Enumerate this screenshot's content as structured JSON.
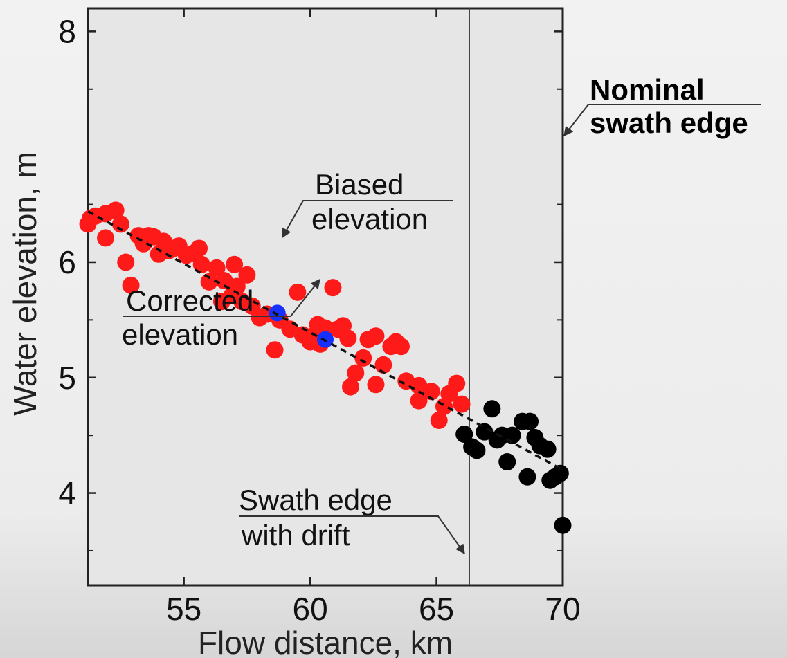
{
  "chart_data": {
    "type": "scatter",
    "title": "",
    "xlabel": "Flow distance, km",
    "ylabel": "Water elevation, m",
    "xlim": [
      51.2,
      70
    ],
    "ylim": [
      3.2,
      8.2
    ],
    "xticks": [
      55,
      60,
      65,
      70
    ],
    "xtick_labels": [
      "55",
      "60",
      "65",
      "70"
    ],
    "yticks": [
      4,
      5,
      6,
      8
    ],
    "ytick_labels": [
      "4",
      "5",
      "6",
      "8"
    ],
    "y_minor_ticks": [
      3.5,
      4.5,
      5.5,
      6.5,
      7.5
    ],
    "grid": false,
    "series": [
      {
        "color": "#ff1a1a",
        "points": [
          [
            51.2,
            6.33
          ],
          [
            51.3,
            6.38
          ],
          [
            51.5,
            6.4
          ],
          [
            51.9,
            6.42
          ],
          [
            52.3,
            6.45
          ],
          [
            52.5,
            6.33
          ],
          [
            51.9,
            6.21
          ],
          [
            52.7,
            6.0
          ],
          [
            52.9,
            5.8
          ],
          [
            53.2,
            6.23
          ],
          [
            53.4,
            6.16
          ],
          [
            53.6,
            6.23
          ],
          [
            53.8,
            6.22
          ],
          [
            54.0,
            6.07
          ],
          [
            54.2,
            6.18
          ],
          [
            54.4,
            6.1
          ],
          [
            54.6,
            6.12
          ],
          [
            54.8,
            6.14
          ],
          [
            55.1,
            6.06
          ],
          [
            55.4,
            6.08
          ],
          [
            55.6,
            6.12
          ],
          [
            55.7,
            5.98
          ],
          [
            56.0,
            5.83
          ],
          [
            56.3,
            5.95
          ],
          [
            56.6,
            5.84
          ],
          [
            56.5,
            5.66
          ],
          [
            57.0,
            5.98
          ],
          [
            56.9,
            5.71
          ],
          [
            57.1,
            5.79
          ],
          [
            57.3,
            5.66
          ],
          [
            57.5,
            5.89
          ],
          [
            57.7,
            5.62
          ],
          [
            58.0,
            5.52
          ],
          [
            58.3,
            5.55
          ],
          [
            58.6,
            5.24
          ],
          [
            58.8,
            5.5
          ],
          [
            59.2,
            5.42
          ],
          [
            59.5,
            5.74
          ],
          [
            59.7,
            5.37
          ],
          [
            60.0,
            5.31
          ],
          [
            60.1,
            5.36
          ],
          [
            60.3,
            5.46
          ],
          [
            60.4,
            5.29
          ],
          [
            60.6,
            5.43
          ],
          [
            60.9,
            5.78
          ],
          [
            61.1,
            5.42
          ],
          [
            61.3,
            5.45
          ],
          [
            61.5,
            5.34
          ],
          [
            61.6,
            4.92
          ],
          [
            61.8,
            5.04
          ],
          [
            62.1,
            5.17
          ],
          [
            62.3,
            5.33
          ],
          [
            62.6,
            5.36
          ],
          [
            62.6,
            4.94
          ],
          [
            62.9,
            5.11
          ],
          [
            63.2,
            5.27
          ],
          [
            63.4,
            5.31
          ],
          [
            63.6,
            5.27
          ],
          [
            63.8,
            4.97
          ],
          [
            64.3,
            4.93
          ],
          [
            64.3,
            4.8
          ],
          [
            64.8,
            4.88
          ],
          [
            65.1,
            4.63
          ],
          [
            65.3,
            4.75
          ],
          [
            65.5,
            4.86
          ],
          [
            65.8,
            4.95
          ],
          [
            66.0,
            4.77
          ]
        ]
      },
      {
        "color": "#000000",
        "points": [
          [
            66.1,
            4.51
          ],
          [
            66.4,
            4.4
          ],
          [
            66.6,
            4.37
          ],
          [
            66.9,
            4.53
          ],
          [
            67.2,
            4.73
          ],
          [
            67.4,
            4.46
          ],
          [
            67.6,
            4.5
          ],
          [
            67.8,
            4.27
          ],
          [
            68.0,
            4.5
          ],
          [
            68.4,
            4.62
          ],
          [
            68.6,
            4.14
          ],
          [
            68.7,
            4.62
          ],
          [
            68.9,
            4.48
          ],
          [
            69.1,
            4.41
          ],
          [
            69.4,
            4.38
          ],
          [
            69.5,
            4.11
          ],
          [
            69.7,
            4.14
          ],
          [
            69.9,
            4.17
          ],
          [
            70.0,
            3.72
          ]
        ]
      },
      {
        "color": "#1530ff",
        "points": [
          [
            58.7,
            5.56
          ],
          [
            60.6,
            5.33
          ]
        ]
      }
    ],
    "fit_line": {
      "style": "dashed",
      "color": "#111111",
      "x": [
        51.2,
        70.0
      ],
      "y": [
        6.44,
        4.2
      ]
    },
    "vertical_lines": [
      {
        "x": 66.3,
        "color": "#444444"
      }
    ],
    "annotations": [
      {
        "id": "biased",
        "lines": [
          "Biased",
          "elevation"
        ],
        "bold": false
      },
      {
        "id": "corrected",
        "lines": [
          "Corrected",
          "elevation"
        ],
        "bold": false
      },
      {
        "id": "swath-drift",
        "lines": [
          "Swath edge",
          "with drift"
        ],
        "bold": false
      },
      {
        "id": "nominal",
        "lines": [
          "Nominal",
          "swath edge"
        ],
        "bold": true
      }
    ]
  },
  "colors": {
    "plot_background": "#e6e6e6",
    "axis": "#222222",
    "annotation_line": "#333333"
  }
}
